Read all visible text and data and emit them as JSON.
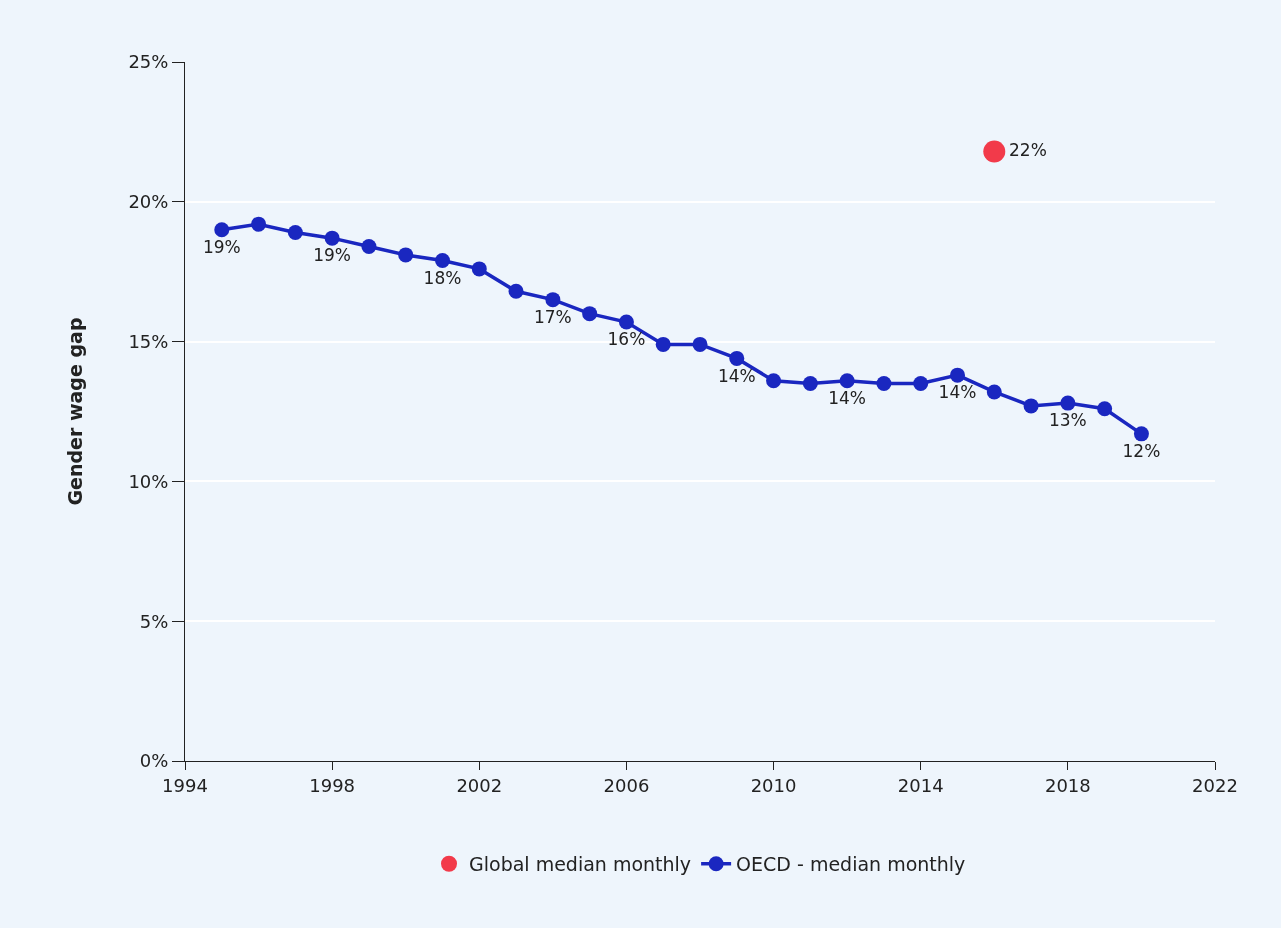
{
  "chart_data": {
    "type": "line",
    "ylabel": "Gender wage gap",
    "xlim": [
      1994,
      2022
    ],
    "xticks": [
      1994,
      1998,
      2002,
      2006,
      2010,
      2014,
      2018,
      2022
    ],
    "ylim": [
      0,
      25
    ],
    "yticks": [
      {
        "value": 0,
        "label": "0%"
      },
      {
        "value": 5,
        "label": "5%"
      },
      {
        "value": 10,
        "label": "10%"
      },
      {
        "value": 15,
        "label": "15%"
      },
      {
        "value": 20,
        "label": "20%"
      },
      {
        "value": 25,
        "label": "25%"
      }
    ],
    "grid": "y",
    "legend": "bottom",
    "marker": "circle",
    "line_style": "solid",
    "series": [
      {
        "name": "Global median monthly",
        "type": "scatter",
        "color": "#f23a4a",
        "x": [
          2016
        ],
        "values": [
          21.8
        ],
        "value_labels": [
          "22%"
        ]
      },
      {
        "name": "OECD - median monthly",
        "type": "line",
        "color": "#1a27c0",
        "x": [
          1995,
          1996,
          1997,
          1998,
          1999,
          2000,
          2001,
          2002,
          2003,
          2004,
          2005,
          2006,
          2007,
          2008,
          2009,
          2010,
          2011,
          2012,
          2013,
          2014,
          2015,
          2016,
          2017,
          2018,
          2019,
          2020
        ],
        "values": [
          19.0,
          19.2,
          18.9,
          18.7,
          18.4,
          18.1,
          17.9,
          17.6,
          16.8,
          16.5,
          16.0,
          15.7,
          14.9,
          14.9,
          14.4,
          13.6,
          13.5,
          13.6,
          13.5,
          13.5,
          13.8,
          13.2,
          12.7,
          12.8,
          12.6,
          11.7
        ],
        "value_labels": [
          "19%",
          null,
          null,
          "19%",
          null,
          null,
          "18%",
          null,
          null,
          "17%",
          null,
          "16%",
          null,
          null,
          "14%",
          null,
          null,
          "14%",
          null,
          null,
          "14%",
          null,
          null,
          "13%",
          null,
          "12%"
        ]
      }
    ]
  }
}
